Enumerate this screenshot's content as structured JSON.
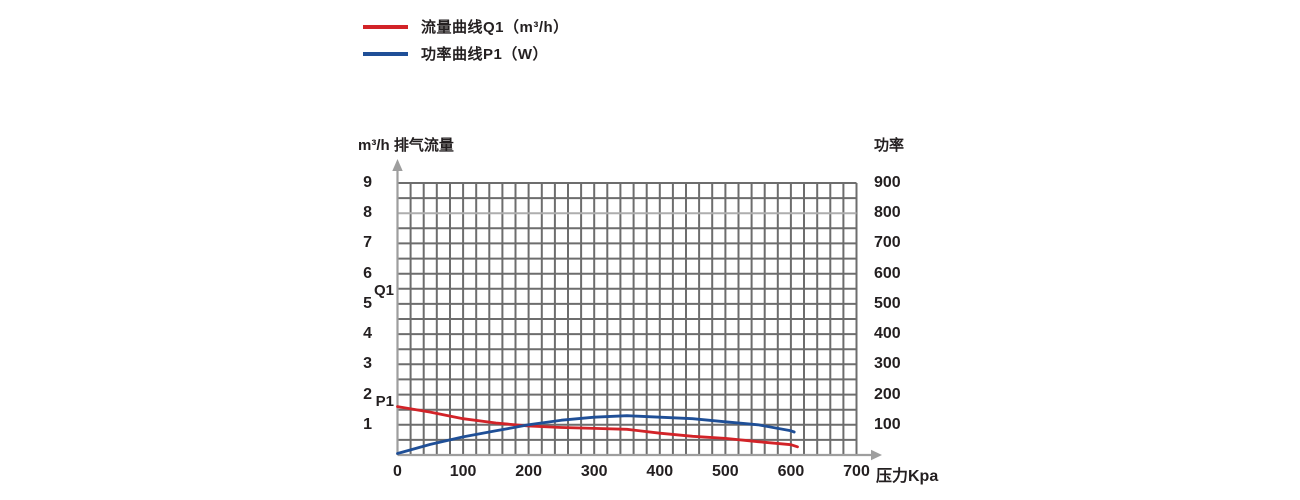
{
  "page": {
    "background": "#ffffff",
    "text_color": "#231f20"
  },
  "legend": {
    "items": [
      {
        "label": "流量曲线Q1（m³/h）",
        "color": "#d22328"
      },
      {
        "label": "功率曲线P1（W）",
        "color": "#1f4f97"
      }
    ]
  },
  "chart_data": {
    "type": "line",
    "title": "",
    "legend_position": "top-left",
    "x_axis": {
      "label": "压力Kpa",
      "min": 0,
      "max": 700,
      "major_tick_step": 100,
      "minor_grid_step": 20,
      "ticks": [
        0,
        100,
        200,
        300,
        400,
        500,
        600,
        700
      ]
    },
    "y_axis_left": {
      "label": "m³/h 排气流量",
      "min": 0,
      "max": 9,
      "minor_grid_step": 0.5,
      "ticks": [
        9,
        8,
        7,
        6,
        5,
        4,
        3,
        2,
        1
      ]
    },
    "y_axis_right": {
      "label": "功率",
      "unit": "W",
      "min": 0,
      "max": 900,
      "ticks": [
        900,
        800,
        700,
        600,
        500,
        400,
        300,
        200,
        100
      ]
    },
    "grid": {
      "on": true,
      "color": "#6d6d6d",
      "light_color": "#aeaeae",
      "light_vertical_at_x": 450,
      "light_horizontal_at_left_y": 8
    },
    "axis_color": "#9e9e9e",
    "series": [
      {
        "name": "Q1",
        "legend": "流量曲线Q1（m³/h）",
        "axis": "left",
        "color": "#d22328",
        "x": [
          0,
          50,
          100,
          150,
          200,
          250,
          300,
          350,
          400,
          450,
          500,
          550,
          600,
          610
        ],
        "y": [
          1.6,
          1.42,
          1.2,
          1.06,
          0.96,
          0.91,
          0.88,
          0.85,
          0.72,
          0.62,
          0.55,
          0.44,
          0.34,
          0.27
        ]
      },
      {
        "name": "P1",
        "legend": "功率曲线P1（W）",
        "axis": "right",
        "color": "#1f4f97",
        "x": [
          0,
          50,
          100,
          150,
          200,
          250,
          300,
          350,
          400,
          450,
          500,
          550,
          600,
          605
        ],
        "y": [
          5,
          35,
          60,
          80,
          100,
          115,
          125,
          130,
          125,
          120,
          110,
          100,
          80,
          76
        ]
      }
    ],
    "annotations": [
      {
        "text": "Q1",
        "axis": "left",
        "value": 5.45
      },
      {
        "text": "P1",
        "axis": "left",
        "value": 1.79
      }
    ]
  }
}
